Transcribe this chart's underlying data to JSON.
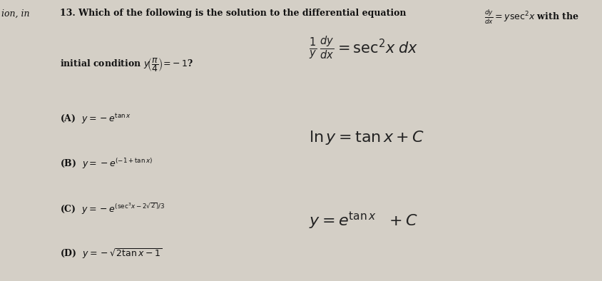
{
  "background_color": "#d4cfc6",
  "top_left_text": "ion, in",
  "q_line1": "13. Which of the following is the solution to the differential equation",
  "q_de": "$\\frac{dy}{dx} = y\\sec^2\\!x$ with the",
  "q_line2": "initial condition $y\\!\\left(\\frac{\\pi}{4}\\right)\\!=\\!-1$?",
  "opt_A": "(A)  $y = -e^{\\tan x}$",
  "opt_B": "(B)  $y = -e^{(-1+\\tan x)}$",
  "opt_C": "(C)  $y = -e^{(\\sec^3\\!x-2\\sqrt{2})/3}$",
  "opt_D": "(D)  $y = -\\sqrt{2\\tan x - 1}$",
  "hw_line1_a": "$\\frac{1}{y}$",
  "hw_line1_b": "$\\frac{dy}{dx}$",
  "hw_line1_c": "$= \\sec^2\\!x\\; dx$",
  "hw_line2": "$\\ln y = \\tan x + C$",
  "hw_line3a": "$y = e$",
  "hw_line3b": "$^{\\tan x}$",
  "hw_line3c": "$+ C$",
  "font_color": "#111111",
  "hw_color": "#222222"
}
